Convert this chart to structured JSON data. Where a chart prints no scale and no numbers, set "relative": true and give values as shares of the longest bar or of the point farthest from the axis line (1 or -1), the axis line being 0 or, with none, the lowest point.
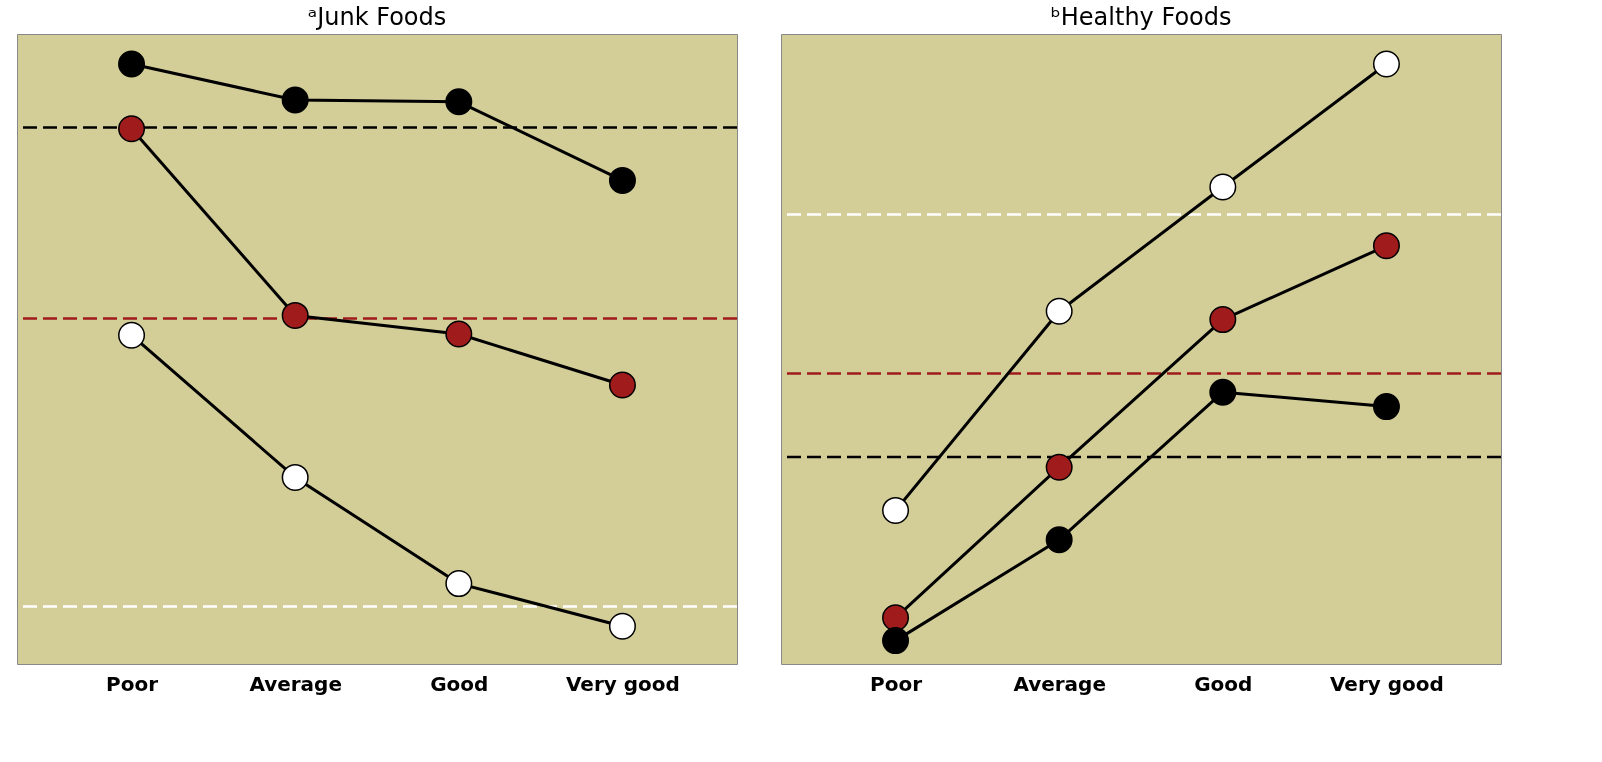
{
  "chart_data": [
    {
      "type": "line",
      "title": "ᵃJunk Foods",
      "relative": true,
      "categories": [
        "Poor",
        "Average",
        "Good",
        "Very good"
      ],
      "marker": "circle",
      "grid": false,
      "series": [
        {
          "color": "#000000",
          "values": [
            1,
            0.94,
            0.937,
            0.806
          ]
        },
        {
          "color": "#a01c1c",
          "values": [
            0.892,
            0.581,
            0.55,
            0.465
          ]
        },
        {
          "color": "#ffffff",
          "values": [
            0.548,
            0.311,
            0.134,
            0.063
          ]
        }
      ],
      "ref_lines": [
        {
          "axis": "y",
          "value": 0.894,
          "color": "#000000",
          "line_style": "dashed"
        },
        {
          "axis": "y",
          "value": 0.576,
          "color": "#a01c1c",
          "line_style": "dashed"
        },
        {
          "axis": "y",
          "value": 0.096,
          "color": "#ffffff",
          "line_style": "dashed"
        }
      ]
    },
    {
      "type": "line",
      "title": "ᵇHealthy Foods",
      "relative": true,
      "categories": [
        "Poor",
        "Average",
        "Good",
        "Very good"
      ],
      "marker": "circle",
      "grid": false,
      "series": [
        {
          "color": "#ffffff",
          "values": [
            0.256,
            0.588,
            0.795,
            1
          ]
        },
        {
          "color": "#a01c1c",
          "values": [
            0.077,
            0.328,
            0.574,
            0.697
          ]
        },
        {
          "color": "#000000",
          "values": [
            0.039,
            0.207,
            0.453,
            0.429
          ]
        }
      ],
      "ref_lines": [
        {
          "axis": "y",
          "value": 0.749,
          "color": "#ffffff",
          "line_style": "dashed"
        },
        {
          "axis": "y",
          "value": 0.484,
          "color": "#a01c1c",
          "line_style": "dashed"
        },
        {
          "axis": "y",
          "value": 0.345,
          "color": "#000000",
          "line_style": "dashed"
        }
      ]
    }
  ]
}
